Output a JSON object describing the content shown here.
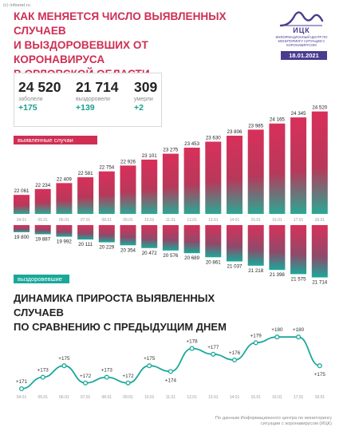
{
  "credit": "(c) infoorel.ru",
  "title_lines": [
    "КАК МЕНЯЕТСЯ ЧИСЛО ВЫЯВЛЕННЫХ СЛУЧАЕВ",
    "И ВЫЗДОРОВЕВШИХ ОТ КОРОНАВИРУСА",
    "В ОРЛОВСКОЙ ОБЛАСТИ"
  ],
  "logo": {
    "name": "ИЦК",
    "subtitle": "Информационный центр по мониторингу ситуации с коронавирусом"
  },
  "date": "18.01.2021",
  "stats": [
    {
      "value": "24 520",
      "label": "заболели",
      "delta": "+175"
    },
    {
      "value": "21 714",
      "label": "выздоровели",
      "delta": "+139"
    },
    {
      "value": "309",
      "label": "умерли",
      "delta": "+2"
    }
  ],
  "labels": {
    "cases": "выявленные случаи",
    "recovered": "выздоровевшие"
  },
  "subtitle_lines": [
    "ДИНАМИКА ПРИРОСТА ВЫЯВЛЕННЫХ СЛУЧАЕВ",
    "ПО СРАВНЕНИЮ С ПРЕДЫДУЩИМ ДНЕМ"
  ],
  "footer": "По данным Информационного центра по мониторингу ситуации с коронавирусом (ИЦК)",
  "colors": {
    "cases": "#cf2f53",
    "recovered": "#1aa89a",
    "line": "#1aa89a",
    "accent": "#4a3b8f"
  },
  "chart_data": [
    {
      "type": "bar",
      "name": "выявленные случаи",
      "categories": [
        "04.01",
        "05.01",
        "06.01",
        "07.01",
        "08.01",
        "09.01",
        "10.01",
        "11.01",
        "12.01",
        "13.01",
        "14.01",
        "15.01",
        "16.01",
        "17.01",
        "18.01"
      ],
      "values": [
        22061,
        22234,
        22409,
        22581,
        22754,
        22926,
        23101,
        23275,
        23453,
        23630,
        23806,
        23985,
        24165,
        24345,
        24520
      ],
      "value_labels": [
        "22 061",
        "22 234",
        "22 409",
        "22 581",
        "22 754",
        "22 926",
        "23 101",
        "23 275",
        "23 453",
        "23 630",
        "23 806",
        "23 985",
        "24 165",
        "24 345",
        "24 520"
      ]
    },
    {
      "type": "bar",
      "name": "выздоровевшие",
      "categories": [
        "04.01",
        "05.01",
        "06.01",
        "07.01",
        "08.01",
        "09.01",
        "10.01",
        "11.01",
        "12.01",
        "13.01",
        "14.01",
        "15.01",
        "16.01",
        "17.01",
        "18.01"
      ],
      "values": [
        19800,
        19887,
        19992,
        20111,
        20229,
        20354,
        20472,
        20576,
        20689,
        20861,
        21037,
        21218,
        21398,
        21575,
        21714
      ],
      "value_labels": [
        "19 800",
        "19 887",
        "19 992",
        "20 111",
        "20 229",
        "20 354",
        "20 472",
        "20 576",
        "20 689",
        "20 861",
        "21 037",
        "21 218",
        "21 398",
        "21 575",
        "21 714"
      ]
    },
    {
      "type": "line",
      "title": "ДИНАМИКА ПРИРОСТА ВЫЯВЛЕННЫХ СЛУЧАЕВ ПО СРАВНЕНИЮ С ПРЕДЫДУЩИМ ДНЕМ",
      "categories": [
        "04.01",
        "05.01",
        "06.01",
        "07.01",
        "08.01",
        "09.01",
        "10.01",
        "11.01",
        "12.01",
        "13.01",
        "14.01",
        "15.01",
        "16.01",
        "17.01",
        "18.01"
      ],
      "values": [
        171,
        173,
        175,
        172,
        173,
        172,
        175,
        174,
        178,
        177,
        176,
        179,
        180,
        180,
        175
      ],
      "value_labels": [
        "+171",
        "+173",
        "+175",
        "+172",
        "+173",
        "+172",
        "+175",
        "+174",
        "+178",
        "+177",
        "+176",
        "+179",
        "+180",
        "+180",
        "+175"
      ]
    }
  ]
}
